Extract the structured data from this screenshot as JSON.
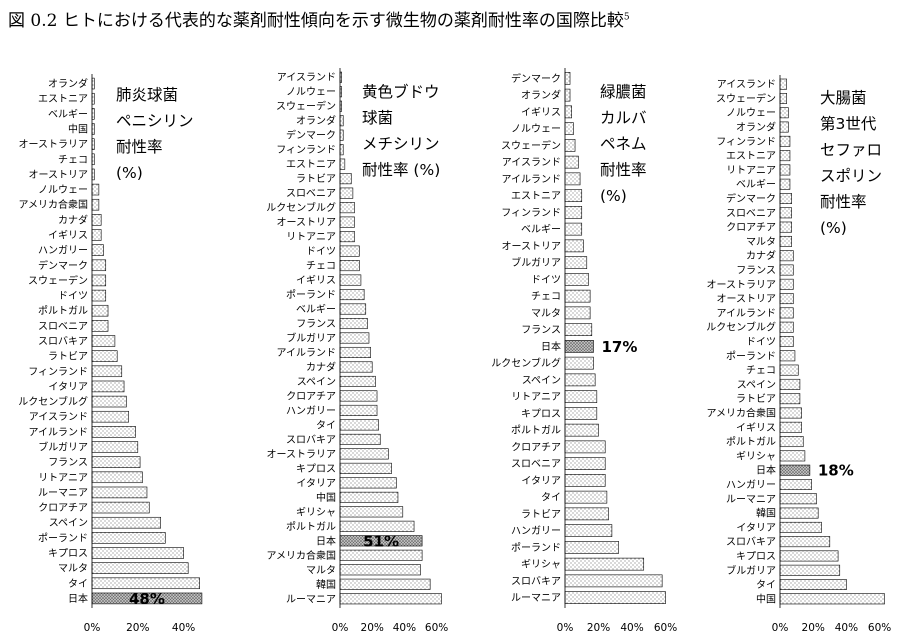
{
  "figure": {
    "title": "図 0.2  ヒトにおける代表的な薬剤耐性傾向を示す微生物の薬剤耐性率の国際比較",
    "sup": "5"
  },
  "chart_data": [
    {
      "type": "bar",
      "orientation": "horizontal",
      "title_lines": [
        "肺炎球菌",
        "ペニシリン",
        "耐性率",
        "(%)"
      ],
      "categories": [
        "オランダ",
        "エストニア",
        "ベルギー",
        "中国",
        "オーストラリア",
        "チェコ",
        "オーストリア",
        "ノルウェー",
        "アメリカ合衆国",
        "カナダ",
        "イギリス",
        "ハンガリー",
        "デンマーク",
        "スウェーデン",
        "ドイツ",
        "ポルトガル",
        "スロベニア",
        "スロバキア",
        "ラトビア",
        "フィンランド",
        "イタリア",
        "ルクセンブルグ",
        "アイスランド",
        "アイルランド",
        "ブルガリア",
        "フランス",
        "リトアニア",
        "ルーマニア",
        "クロアチア",
        "スペイン",
        "ポーランド",
        "キプロス",
        "マルタ",
        "タイ",
        "日本"
      ],
      "values": [
        1,
        1,
        1,
        1,
        1,
        1,
        1,
        3,
        3,
        4,
        4,
        5,
        6,
        6,
        6,
        7,
        7,
        10,
        11,
        13,
        14,
        15,
        16,
        19,
        20,
        21,
        22,
        24,
        25,
        30,
        32,
        40,
        42,
        47,
        48
      ],
      "highlight": {
        "category": "日本",
        "label": "48%"
      },
      "xlim": [
        0,
        50
      ],
      "xticks": [
        "0%",
        "20%",
        "40%"
      ]
    },
    {
      "type": "bar",
      "orientation": "horizontal",
      "title_lines": [
        "黄色ブドウ",
        "球菌",
        "メチシリン",
        "耐性率 (%)"
      ],
      "categories": [
        "アイスランド",
        "ノルウェー",
        "スウェーデン",
        "オランダ",
        "デンマーク",
        "フィンランド",
        "エストニア",
        "ラトビア",
        "スロベニア",
        "ルクセンブルグ",
        "オーストリア",
        "リトアニア",
        "ドイツ",
        "チェコ",
        "イギリス",
        "ポーランド",
        "ベルギー",
        "フランス",
        "ブルガリア",
        "アイルランド",
        "カナダ",
        "スペイン",
        "クロアチア",
        "ハンガリー",
        "タイ",
        "スロバキア",
        "オーストラリア",
        "キプロス",
        "イタリア",
        "中国",
        "ギリシャ",
        "ポルトガル",
        "日本",
        "アメリカ合衆国",
        "マルタ",
        "韓国",
        "ルーマニア"
      ],
      "values": [
        1,
        1,
        1,
        2,
        2,
        2,
        3,
        7,
        8,
        9,
        9,
        9,
        12,
        12,
        13,
        15,
        16,
        17,
        18,
        19,
        20,
        22,
        23,
        23,
        24,
        25,
        30,
        32,
        35,
        36,
        39,
        46,
        51,
        51,
        50,
        56,
        63
      ],
      "highlight": {
        "category": "日本",
        "label": "51%"
      },
      "xlim": [
        0,
        70
      ],
      "xticks": [
        "0%",
        "20%",
        "40%",
        "60%"
      ]
    },
    {
      "type": "bar",
      "orientation": "horizontal",
      "title_lines": [
        "緑膿菌",
        "カルバ",
        "ペネム",
        "耐性率",
        "(%)"
      ],
      "categories": [
        "デンマーク",
        "オランダ",
        "イギリス",
        "ノルウェー",
        "スウェーデン",
        "アイスランド",
        "アイルランド",
        "エストニア",
        "フィンランド",
        "ベルギー",
        "オーストリア",
        "ブルガリア",
        "ドイツ",
        "チェコ",
        "マルタ",
        "フランス",
        "日本",
        "ルクセンブルグ",
        "スペイン",
        "リトアニア",
        "キプロス",
        "ポルトガル",
        "クロアチア",
        "スロベニア",
        "イタリア",
        "タイ",
        "ラトビア",
        "ハンガリー",
        "ポーランド",
        "ギリシャ",
        "スロバキア",
        "ルーマニア"
      ],
      "values": [
        3,
        3,
        4,
        5,
        6,
        8,
        9,
        10,
        10,
        10,
        11,
        13,
        14,
        15,
        15,
        16,
        17,
        17,
        18,
        19,
        19,
        20,
        24,
        24,
        24,
        25,
        26,
        28,
        32,
        47,
        58,
        60
      ],
      "highlight": {
        "category": "日本",
        "label": "17%"
      },
      "xlim": [
        0,
        70
      ],
      "xticks": [
        "0%",
        "20%",
        "40%",
        "60%"
      ]
    },
    {
      "type": "bar",
      "orientation": "horizontal",
      "title_lines": [
        "大腸菌",
        "第3世代",
        "セファロ",
        "スポリン",
        "耐性率",
        "(%)"
      ],
      "categories": [
        "アイスランド",
        "スウェーデン",
        "ノルウェー",
        "オランダ",
        "フィンランド",
        "エストニア",
        "リトアニア",
        "ベルギー",
        "デンマーク",
        "スロベニア",
        "クロアチア",
        "マルタ",
        "カナダ",
        "フランス",
        "オーストラリア",
        "オーストリア",
        "アイルランド",
        "ルクセンブルグ",
        "ドイツ",
        "ポーランド",
        "チェコ",
        "スペイン",
        "ラトビア",
        "アメリカ合衆国",
        "イギリス",
        "ポルトガル",
        "ギリシャ",
        "日本",
        "ハンガリー",
        "ルーマニア",
        "韓国",
        "イタリア",
        "スロバキア",
        "キプロス",
        "ブルガリア",
        "タイ",
        "中国"
      ],
      "values": [
        4,
        4,
        5,
        5,
        6,
        6,
        6,
        6,
        7,
        7,
        7,
        7,
        8,
        8,
        8,
        8,
        8,
        8,
        8,
        9,
        11,
        12,
        12,
        13,
        13,
        14,
        15,
        18,
        19,
        22,
        23,
        25,
        30,
        35,
        36,
        40,
        63
      ],
      "highlight": {
        "category": "日本",
        "label": "18%"
      },
      "xlim": [
        0,
        70
      ],
      "xticks": [
        "0%",
        "20%",
        "40%",
        "60%"
      ]
    }
  ]
}
